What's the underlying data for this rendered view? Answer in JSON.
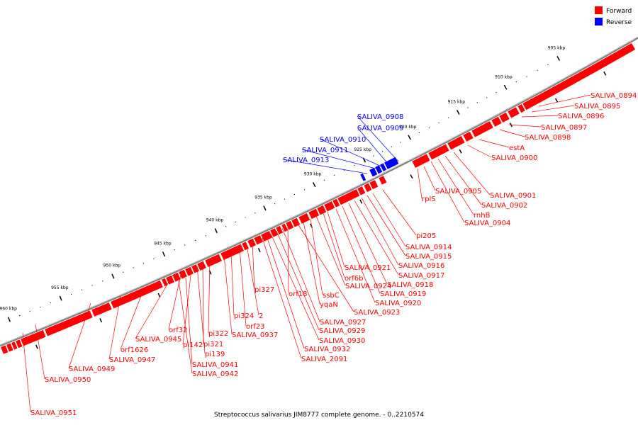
{
  "legend": [
    {
      "label": "Forward",
      "color": "#ff0000"
    },
    {
      "label": "Reverse",
      "color": "#0000ff"
    }
  ],
  "footer": "Streptococcus salivarius JIM8777 complete genome. - 0..2210574",
  "colors": {
    "forward": "#ff0000",
    "reverse": "#0000ff",
    "backbone": "#808080"
  },
  "ticks": [
    "905 kbp",
    "910 kbp",
    "915 kbp",
    "920 kbp",
    "925 kbp",
    "930 kbp",
    "935 kbp",
    "940 kbp",
    "945 kbp",
    "950 kbp",
    "955 kbp",
    "960 kbp"
  ],
  "genes_reverse": [
    "SALIVA_0908",
    "SALIVA_0909",
    "SALIVA_0910",
    "SALIVA_0911",
    "SALIVA_0913"
  ],
  "genes_forward": [
    "SALIVA_0894",
    "SALIVA_0895",
    "SALIVA_0896",
    "SALIVA_0897",
    "SALIVA_0898",
    "estA",
    "SALIVA_0900",
    "SALIVA_0901",
    "SALIVA_0902",
    "rnhB",
    "SALIVA_0904",
    "SALIVA_0905",
    "rplS",
    "pi205",
    "SALIVA_0914",
    "SALIVA_0915",
    "SALIVA_0916",
    "SALIVA_0917",
    "SALIVA_0918",
    "SALIVA_0919",
    "SALIVA_0920",
    "SALIVA_0921",
    "orf6b",
    "SALIVA_0924",
    "ssbC",
    "yqaN",
    "SALIVA_0923",
    "orf18",
    "SALIVA_0927",
    "SALIVA_0929",
    "SALIVA_0930",
    "SALIVA_0932",
    "SALIVA_2091",
    "pi327",
    "2",
    "orf23",
    "pi324",
    "SALIVA_0937",
    "pi322",
    "pi321",
    "pi139",
    "pi142",
    "orf32",
    "SALIVA_0945",
    "SALIVA_0941",
    "SALIVA_0942",
    "orf1626",
    "SALIVA_0947",
    "SALIVA_0949",
    "SALIVA_0950",
    "SALIVA_0951"
  ]
}
